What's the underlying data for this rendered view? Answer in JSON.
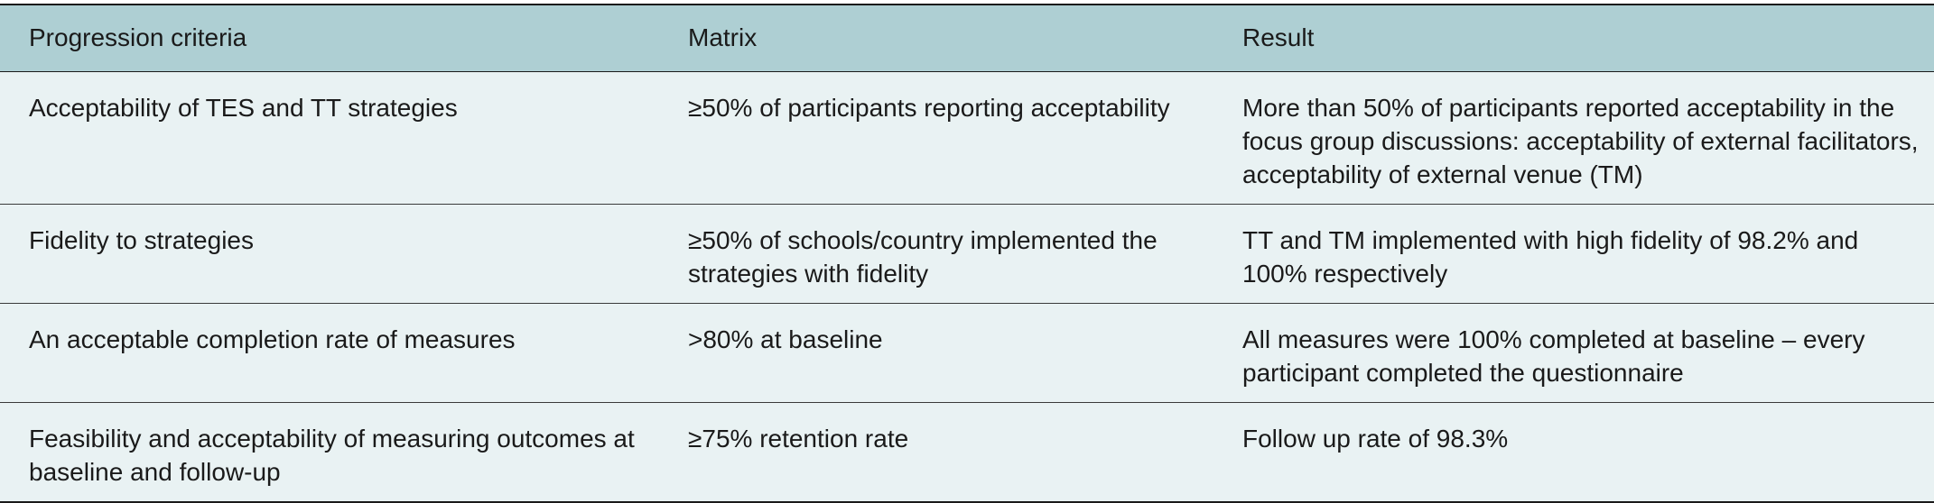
{
  "table": {
    "headers": [
      "Progression criteria",
      "Matrix",
      "Result"
    ],
    "rows": [
      {
        "criteria": "Acceptability of TES and TT strategies",
        "matrix": "≥50% of participants reporting acceptability",
        "result": "More than 50% of participants reported acceptability in the focus group discussions: acceptability of external facilitators, acceptability of external venue (TM)"
      },
      {
        "criteria": "Fidelity to strategies",
        "matrix": "≥50% of schools/country implemented the strategies with fidelity",
        "result": "TT and TM implemented with high fidelity of 98.2% and 100% respectively"
      },
      {
        "criteria": "An acceptable completion rate of measures",
        "matrix": ">80% at baseline",
        "result": "All measures were 100% completed at baseline – every participant completed the questionnaire"
      },
      {
        "criteria": "Feasibility and acceptability of measuring outcomes at baseline and follow-up",
        "matrix": "≥75% retention rate",
        "result": "Follow up rate of 98.3%"
      }
    ]
  },
  "colors": {
    "header_background": "#aecfd3",
    "body_background": "#e9f2f3",
    "rule": "#1a1a1a"
  }
}
